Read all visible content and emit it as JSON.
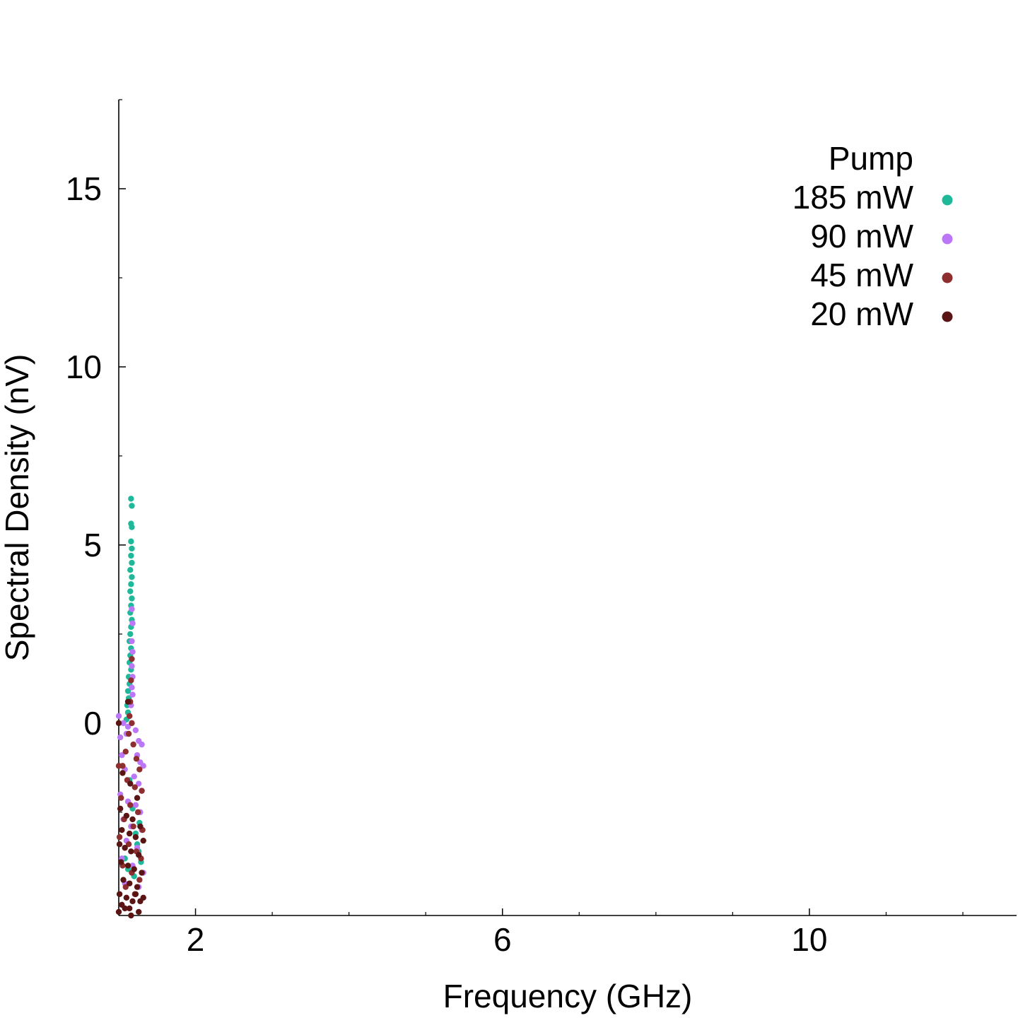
{
  "chart_data": {
    "type": "scatter",
    "title": "",
    "xlabel": "Frequency (GHz)",
    "ylabel": "Spectral Density (nV)",
    "xlim": [
      1.0,
      12.7
    ],
    "ylim": [
      -5.4,
      17.5
    ],
    "x_major_ticks": [
      2,
      6,
      10
    ],
    "x_tick_labels": [
      "2",
      "6",
      "10"
    ],
    "x_minor_ticks": [
      1,
      3,
      4,
      5,
      7,
      8,
      9,
      11,
      12
    ],
    "y_major_ticks": [
      0,
      5,
      10,
      15
    ],
    "y_tick_labels": [
      "0",
      "5",
      "10",
      "15"
    ],
    "y_minor_ticks": [
      -2.5,
      2.5,
      7.5,
      12.5,
      17.5
    ],
    "grid": false,
    "legend": {
      "title": "Pump",
      "placement": "top-right",
      "entries": [
        "185 mW",
        "90 mW",
        "45 mW",
        "20 mW"
      ]
    },
    "series": [
      {
        "name": "185 mW",
        "color": "#1fb99a",
        "points": [
          [
            1.16,
            6.3
          ],
          [
            1.17,
            6.1
          ],
          [
            1.16,
            5.6
          ],
          [
            1.17,
            5.5
          ],
          [
            1.16,
            5.1
          ],
          [
            1.17,
            4.9
          ],
          [
            1.16,
            4.7
          ],
          [
            1.17,
            4.5
          ],
          [
            1.15,
            4.3
          ],
          [
            1.17,
            4.1
          ],
          [
            1.16,
            3.9
          ],
          [
            1.15,
            3.7
          ],
          [
            1.17,
            3.5
          ],
          [
            1.16,
            3.3
          ],
          [
            1.15,
            3.1
          ],
          [
            1.17,
            2.9
          ],
          [
            1.16,
            2.7
          ],
          [
            1.15,
            2.5
          ],
          [
            1.14,
            2.3
          ],
          [
            1.16,
            2.1
          ],
          [
            1.15,
            1.9
          ],
          [
            1.14,
            1.7
          ],
          [
            1.16,
            1.5
          ],
          [
            1.13,
            1.3
          ],
          [
            1.14,
            1.1
          ],
          [
            1.12,
            0.9
          ],
          [
            1.13,
            0.7
          ],
          [
            1.11,
            0.5
          ],
          [
            1.12,
            0.3
          ],
          [
            1.1,
            0.1
          ],
          [
            1.14,
            -1.6
          ],
          [
            1.18,
            -2.4
          ],
          [
            1.22,
            -3.1
          ],
          [
            1.26,
            -3.6
          ],
          [
            1.29,
            -3.9
          ],
          [
            1.12,
            -4.1
          ],
          [
            1.2,
            -4.3
          ],
          [
            1.24,
            -3.4
          ],
          [
            1.08,
            -3.8
          ],
          [
            1.27,
            -2.8
          ]
        ]
      },
      {
        "name": "90 mW",
        "color": "#bb77f7",
        "points": [
          [
            1.17,
            3.2
          ],
          [
            1.18,
            2.8
          ],
          [
            1.17,
            2.3
          ],
          [
            1.18,
            2.0
          ],
          [
            1.17,
            1.6
          ],
          [
            1.18,
            1.3
          ],
          [
            1.17,
            1.0
          ],
          [
            1.18,
            0.8
          ],
          [
            1.16,
            0.5
          ],
          [
            1.14,
            0.2
          ],
          [
            1.12,
            -0.1
          ],
          [
            1.1,
            -0.3
          ],
          [
            1.0,
            0.2
          ],
          [
            1.02,
            -0.4
          ],
          [
            1.06,
            0.0
          ],
          [
            1.22,
            -0.2
          ],
          [
            1.26,
            -0.5
          ],
          [
            1.3,
            -0.6
          ],
          [
            1.24,
            -0.9
          ],
          [
            1.28,
            -1.1
          ],
          [
            1.32,
            -1.2
          ],
          [
            1.04,
            -0.9
          ],
          [
            1.08,
            -1.3
          ],
          [
            1.2,
            -1.5
          ],
          [
            1.26,
            -1.7
          ],
          [
            1.3,
            -1.9
          ],
          [
            1.02,
            -2.0
          ],
          [
            1.12,
            -2.2
          ],
          [
            1.22,
            -2.3
          ],
          [
            1.28,
            -2.5
          ],
          [
            1.06,
            -2.7
          ],
          [
            1.16,
            -2.9
          ],
          [
            1.3,
            -3.0
          ],
          [
            1.1,
            -3.3
          ],
          [
            1.24,
            -3.5
          ],
          [
            1.04,
            -3.8
          ],
          [
            1.18,
            -4.0
          ],
          [
            1.32,
            -4.2
          ],
          [
            1.08,
            -4.5
          ],
          [
            1.26,
            -4.6
          ]
        ]
      },
      {
        "name": "45 mW",
        "color": "#8e2e2e",
        "points": [
          [
            1.17,
            1.8
          ],
          [
            1.16,
            1.2
          ],
          [
            1.15,
            0.6
          ],
          [
            1.14,
            0.2
          ],
          [
            1.17,
            0.0
          ],
          [
            1.13,
            -0.3
          ],
          [
            1.19,
            -0.6
          ],
          [
            1.09,
            -0.8
          ],
          [
            1.23,
            -1.0
          ],
          [
            1.05,
            -1.2
          ],
          [
            1.27,
            -1.3
          ],
          [
            1.0,
            -1.2
          ],
          [
            1.11,
            -1.6
          ],
          [
            1.21,
            -1.8
          ],
          [
            1.3,
            -1.9
          ],
          [
            1.03,
            -2.1
          ],
          [
            1.15,
            -2.3
          ],
          [
            1.25,
            -2.5
          ],
          [
            1.07,
            -2.7
          ],
          [
            1.19,
            -2.9
          ],
          [
            1.31,
            -3.0
          ],
          [
            1.01,
            -3.2
          ],
          [
            1.13,
            -3.4
          ],
          [
            1.23,
            -3.6
          ],
          [
            1.29,
            -3.8
          ],
          [
            1.05,
            -4.0
          ],
          [
            1.17,
            -4.2
          ],
          [
            1.27,
            -4.4
          ],
          [
            1.09,
            -4.6
          ],
          [
            1.21,
            -4.8
          ]
        ]
      },
      {
        "name": "20 mW",
        "color": "#5a1414",
        "points": [
          [
            1.0,
            0.0
          ],
          [
            1.12,
            0.6
          ],
          [
            1.05,
            -1.4
          ],
          [
            1.15,
            -1.7
          ],
          [
            1.24,
            -2.1
          ],
          [
            1.02,
            -2.4
          ],
          [
            1.1,
            -2.6
          ],
          [
            1.18,
            -2.7
          ],
          [
            1.28,
            -2.9
          ],
          [
            1.04,
            -3.0
          ],
          [
            1.14,
            -3.1
          ],
          [
            1.22,
            -3.2
          ],
          [
            1.32,
            -3.3
          ],
          [
            1.01,
            -3.4
          ],
          [
            1.08,
            -3.5
          ],
          [
            1.16,
            -3.6
          ],
          [
            1.26,
            -3.7
          ],
          [
            1.03,
            -3.9
          ],
          [
            1.12,
            -4.0
          ],
          [
            1.2,
            -4.1
          ],
          [
            1.3,
            -4.2
          ],
          [
            1.06,
            -4.4
          ],
          [
            1.14,
            -4.5
          ],
          [
            1.24,
            -4.6
          ],
          [
            1.01,
            -4.8
          ],
          [
            1.1,
            -4.9
          ],
          [
            1.18,
            -5.0
          ],
          [
            1.28,
            -5.0
          ],
          [
            1.04,
            -5.1
          ],
          [
            1.14,
            -5.2
          ],
          [
            1.22,
            -4.8
          ],
          [
            1.32,
            -4.9
          ],
          [
            1.0,
            -5.3
          ],
          [
            1.16,
            -5.4
          ],
          [
            1.08,
            -5.2
          ],
          [
            1.26,
            -5.3
          ]
        ]
      }
    ]
  }
}
